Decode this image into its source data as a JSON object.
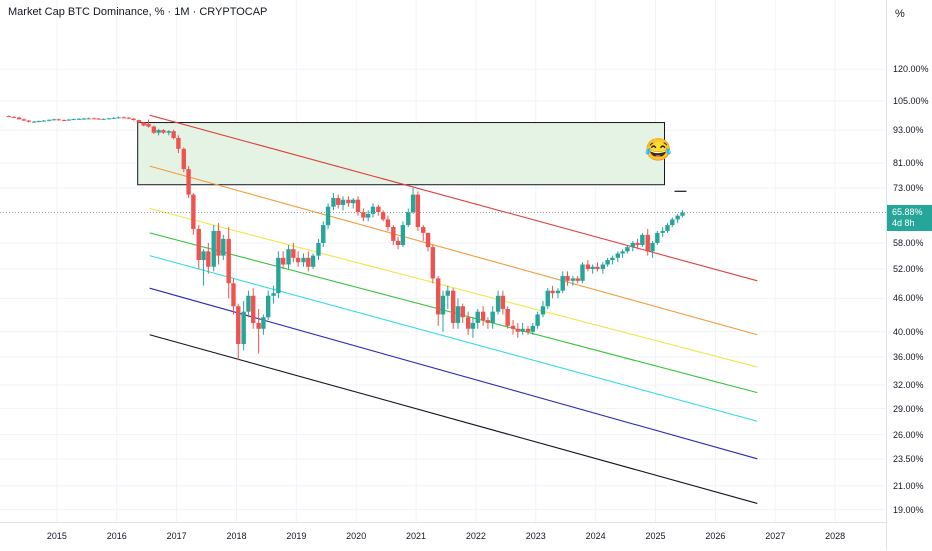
{
  "chart_data": {
    "type": "candlestick",
    "title": "Market Cap BTC Dominance, % · 1M · CRYPTOCAP",
    "y_unit": "%",
    "y_scale": "log",
    "y_ticks": [
      "120.00%",
      "105.00%",
      "93.00%",
      "81.00%",
      "73.00%",
      "65.88%",
      "58.00%",
      "52.00%",
      "46.00%",
      "40.00%",
      "36.00%",
      "32.00%",
      "29.00%",
      "26.00%",
      "23.50%",
      "21.00%",
      "19.00%"
    ],
    "y_tick_values": [
      120,
      105,
      93,
      81,
      73,
      58,
      52,
      46,
      40,
      36,
      32,
      29,
      26,
      23.5,
      21,
      19
    ],
    "x_ticks": [
      "2015",
      "2016",
      "2017",
      "2018",
      "2019",
      "2020",
      "2021",
      "2022",
      "2023",
      "2024",
      "2025",
      "2026",
      "2027",
      "2028"
    ],
    "x_tick_years": [
      2015,
      2016,
      2017,
      2018,
      2019,
      2020,
      2021,
      2022,
      2023,
      2024,
      2025,
      2026,
      2027,
      2028
    ],
    "x_range": [
      2014.05,
      2028.85
    ],
    "y_range": [
      18.5,
      145
    ],
    "last_price": "65.88%",
    "countdown": "4d 8h",
    "grid": true,
    "colors": {
      "up": "#26a69a",
      "down": "#ef5350",
      "zone_fill": "#e4f3e4",
      "zone_border": "#131722"
    },
    "zone": {
      "x_start": 2016.35,
      "x_end": 2025.15,
      "y_low": 74,
      "y_high": 96
    },
    "annotation_icon": "laughing-crying-emoji",
    "channel_lines": [
      {
        "color": "#e04040",
        "x": [
          2016.55,
          2026.7
        ],
        "y": [
          99,
          49.5
        ]
      },
      {
        "color": "#f29b39",
        "x": [
          2016.55,
          2026.7
        ],
        "y": [
          80,
          39.5
        ]
      },
      {
        "color": "#f0e64a",
        "x": [
          2016.55,
          2026.7
        ],
        "y": [
          67,
          34.5
        ]
      },
      {
        "color": "#38c438",
        "x": [
          2016.55,
          2026.7
        ],
        "y": [
          60.5,
          31
        ]
      },
      {
        "color": "#33dbe8",
        "x": [
          2016.55,
          2026.7
        ],
        "y": [
          55,
          27.5
        ]
      },
      {
        "color": "#2a2ab8",
        "x": [
          2016.55,
          2026.7
        ],
        "y": [
          48,
          23.5
        ]
      },
      {
        "color": "#131722",
        "x": [
          2016.55,
          2026.7
        ],
        "y": [
          39.5,
          19.5
        ]
      }
    ],
    "candles": [
      [
        2014.2,
        98.6,
        98.9,
        98.2,
        98.3
      ],
      [
        2014.28,
        98.3,
        98.5,
        97.8,
        98.0
      ],
      [
        2014.37,
        98.0,
        98.4,
        97.2,
        97.3
      ],
      [
        2014.45,
        97.3,
        97.6,
        96.6,
        96.8
      ],
      [
        2014.53,
        96.8,
        97.0,
        96.0,
        96.3
      ],
      [
        2014.62,
        96.3,
        96.6,
        95.9,
        96.4
      ],
      [
        2014.7,
        96.4,
        96.8,
        96.1,
        96.6
      ],
      [
        2014.78,
        96.6,
        97.0,
        96.3,
        96.8
      ],
      [
        2014.87,
        96.8,
        97.3,
        96.5,
        97.1
      ],
      [
        2014.95,
        97.1,
        97.6,
        96.9,
        97.3
      ],
      [
        2015.03,
        97.3,
        97.6,
        96.8,
        97.0
      ],
      [
        2015.12,
        97.0,
        97.3,
        96.6,
        96.9
      ],
      [
        2015.2,
        96.9,
        97.4,
        96.7,
        97.2
      ],
      [
        2015.28,
        97.2,
        97.6,
        97.0,
        97.4
      ],
      [
        2015.37,
        97.4,
        97.8,
        97.1,
        97.5
      ],
      [
        2015.45,
        97.5,
        97.9,
        97.2,
        97.6
      ],
      [
        2015.53,
        97.6,
        98.0,
        97.3,
        97.7
      ],
      [
        2015.62,
        97.7,
        98.0,
        97.4,
        97.6
      ],
      [
        2015.7,
        97.6,
        97.8,
        97.2,
        97.4
      ],
      [
        2015.78,
        97.4,
        97.7,
        97.1,
        97.5
      ],
      [
        2015.87,
        97.5,
        97.9,
        97.3,
        97.7
      ],
      [
        2015.95,
        97.7,
        98.2,
        97.5,
        97.9
      ],
      [
        2016.03,
        97.9,
        98.4,
        97.6,
        98.1
      ],
      [
        2016.12,
        98.1,
        98.5,
        97.8,
        98.0
      ],
      [
        2016.2,
        98.0,
        98.2,
        97.4,
        97.6
      ],
      [
        2016.28,
        97.6,
        97.8,
        96.8,
        97.0
      ],
      [
        2016.37,
        97.0,
        97.2,
        95.8,
        96.0
      ],
      [
        2016.45,
        96.0,
        96.3,
        94.5,
        94.8
      ],
      [
        2016.53,
        95.5,
        97.2,
        94.0,
        94.4
      ],
      [
        2016.62,
        94.4,
        94.8,
        91.5,
        92.0
      ],
      [
        2016.7,
        92.0,
        93.5,
        91.0,
        93.0
      ],
      [
        2016.78,
        93.0,
        93.4,
        91.5,
        92.0
      ],
      [
        2016.87,
        92.0,
        93.0,
        91.0,
        92.6
      ],
      [
        2016.95,
        92.6,
        93.2,
        89.5,
        90.0
      ],
      [
        2017.03,
        90.0,
        91.0,
        84.5,
        86.0
      ],
      [
        2017.12,
        86.0,
        86.5,
        78.0,
        79.0
      ],
      [
        2017.2,
        79.0,
        80.0,
        70.0,
        71.0
      ],
      [
        2017.28,
        71.0,
        71.5,
        60.0,
        61.5
      ],
      [
        2017.37,
        61.5,
        62.5,
        52.0,
        54.0
      ],
      [
        2017.45,
        54.0,
        56.5,
        48.5,
        56.0
      ],
      [
        2017.53,
        56.0,
        58.0,
        51.0,
        52.5
      ],
      [
        2017.62,
        52.5,
        62.5,
        51.5,
        61.0
      ],
      [
        2017.7,
        61.0,
        63.0,
        53.0,
        55.0
      ],
      [
        2017.78,
        55.0,
        60.0,
        54.0,
        59.0
      ],
      [
        2017.87,
        59.0,
        62.0,
        46.0,
        49.0
      ],
      [
        2017.95,
        49.0,
        50.0,
        43.0,
        44.5
      ],
      [
        2018.03,
        44.5,
        45.0,
        35.5,
        38.0
      ],
      [
        2018.12,
        38.0,
        45.5,
        37.0,
        43.5
      ],
      [
        2018.2,
        43.5,
        47.5,
        42.5,
        46.5
      ],
      [
        2018.28,
        46.5,
        48.0,
        40.5,
        41.5
      ],
      [
        2018.37,
        41.5,
        44.0,
        36.5,
        40.5
      ],
      [
        2018.45,
        40.5,
        43.0,
        39.5,
        42.5
      ],
      [
        2018.53,
        42.5,
        47.5,
        42.0,
        46.5
      ],
      [
        2018.62,
        46.5,
        48.5,
        45.0,
        47.0
      ],
      [
        2018.7,
        47.0,
        56.0,
        46.0,
        54.5
      ],
      [
        2018.78,
        54.5,
        56.0,
        52.0,
        53.0
      ],
      [
        2018.87,
        53.0,
        57.5,
        52.0,
        56.5
      ],
      [
        2018.95,
        56.5,
        58.0,
        53.5,
        54.5
      ],
      [
        2019.03,
        54.5,
        56.0,
        52.5,
        53.5
      ],
      [
        2019.12,
        53.5,
        55.5,
        52.5,
        54.5
      ],
      [
        2019.2,
        54.5,
        56.0,
        51.5,
        52.5
      ],
      [
        2019.28,
        52.5,
        55.5,
        52.0,
        55.0
      ],
      [
        2019.37,
        55.0,
        59.0,
        54.0,
        58.0
      ],
      [
        2019.45,
        58.0,
        63.5,
        57.0,
        62.5
      ],
      [
        2019.53,
        62.5,
        68.5,
        61.5,
        67.5
      ],
      [
        2019.62,
        67.5,
        71.5,
        66.5,
        70.0
      ],
      [
        2019.7,
        70.0,
        71.0,
        67.0,
        68.0
      ],
      [
        2019.78,
        68.0,
        70.5,
        66.5,
        69.5
      ],
      [
        2019.87,
        69.5,
        70.5,
        67.5,
        68.5
      ],
      [
        2019.95,
        68.5,
        70.0,
        67.0,
        69.5
      ],
      [
        2020.03,
        69.5,
        70.5,
        65.0,
        66.0
      ],
      [
        2020.12,
        66.0,
        67.0,
        63.5,
        64.5
      ],
      [
        2020.2,
        64.5,
        66.5,
        63.5,
        65.5
      ],
      [
        2020.28,
        65.5,
        68.5,
        64.5,
        67.5
      ],
      [
        2020.37,
        67.5,
        68.0,
        65.0,
        66.0
      ],
      [
        2020.45,
        66.0,
        66.5,
        63.5,
        64.0
      ],
      [
        2020.53,
        64.0,
        65.0,
        61.0,
        62.0
      ],
      [
        2020.62,
        62.0,
        62.5,
        57.5,
        58.5
      ],
      [
        2020.7,
        58.5,
        59.5,
        56.5,
        57.5
      ],
      [
        2020.78,
        57.5,
        63.5,
        57.0,
        62.5
      ],
      [
        2020.87,
        62.5,
        67.0,
        62.0,
        66.0
      ],
      [
        2020.95,
        66.0,
        73.0,
        65.5,
        71.0
      ],
      [
        2021.03,
        71.0,
        72.0,
        61.0,
        62.0
      ],
      [
        2021.12,
        62.0,
        62.5,
        58.5,
        60.5
      ],
      [
        2021.2,
        60.5,
        60.5,
        56.0,
        57.0
      ],
      [
        2021.28,
        57.0,
        57.5,
        49.0,
        50.0
      ],
      [
        2021.37,
        50.0,
        50.5,
        41.0,
        43.0
      ],
      [
        2021.45,
        43.0,
        47.5,
        40.0,
        46.5
      ],
      [
        2021.53,
        46.5,
        48.5,
        44.0,
        47.5
      ],
      [
        2021.62,
        47.5,
        48.0,
        40.5,
        41.5
      ],
      [
        2021.7,
        41.5,
        46.0,
        40.5,
        44.5
      ],
      [
        2021.78,
        44.5,
        45.0,
        41.5,
        42.5
      ],
      [
        2021.87,
        42.5,
        43.5,
        39.5,
        40.5
      ],
      [
        2021.95,
        40.5,
        42.5,
        39.0,
        41.5
      ],
      [
        2022.03,
        41.5,
        44.0,
        40.5,
        43.5
      ],
      [
        2022.12,
        43.5,
        44.5,
        41.0,
        42.0
      ],
      [
        2022.2,
        42.0,
        42.5,
        40.5,
        41.5
      ],
      [
        2022.28,
        41.5,
        44.5,
        40.5,
        43.5
      ],
      [
        2022.37,
        43.5,
        47.5,
        43.0,
        46.5
      ],
      [
        2022.45,
        46.5,
        47.5,
        43.0,
        44.0
      ],
      [
        2022.53,
        44.0,
        44.5,
        40.5,
        41.0
      ],
      [
        2022.62,
        41.0,
        42.0,
        39.5,
        40.5
      ],
      [
        2022.7,
        40.5,
        41.5,
        39.0,
        40.0
      ],
      [
        2022.78,
        40.0,
        41.5,
        39.5,
        40.5
      ],
      [
        2022.87,
        40.5,
        41.0,
        39.5,
        40.0
      ],
      [
        2022.95,
        40.0,
        41.5,
        39.5,
        41.0
      ],
      [
        2023.03,
        41.0,
        43.5,
        40.5,
        43.0
      ],
      [
        2023.12,
        43.0,
        45.5,
        42.5,
        44.5
      ],
      [
        2023.2,
        44.5,
        48.0,
        44.0,
        47.5
      ],
      [
        2023.28,
        47.5,
        48.5,
        46.0,
        47.0
      ],
      [
        2023.37,
        47.0,
        48.0,
        46.0,
        47.5
      ],
      [
        2023.45,
        47.5,
        51.5,
        47.0,
        50.5
      ],
      [
        2023.53,
        50.5,
        51.5,
        48.5,
        49.5
      ],
      [
        2023.62,
        49.5,
        50.5,
        48.5,
        50.0
      ],
      [
        2023.7,
        50.0,
        50.5,
        49.0,
        49.5
      ],
      [
        2023.78,
        49.5,
        53.5,
        49.0,
        53.0
      ],
      [
        2023.87,
        53.0,
        54.0,
        51.5,
        52.0
      ],
      [
        2023.95,
        52.0,
        53.0,
        51.0,
        52.5
      ],
      [
        2024.03,
        52.5,
        53.5,
        51.5,
        52.0
      ],
      [
        2024.12,
        52.0,
        53.5,
        51.0,
        53.0
      ],
      [
        2024.2,
        53.0,
        54.5,
        52.5,
        54.0
      ],
      [
        2024.28,
        54.0,
        55.0,
        53.0,
        54.5
      ],
      [
        2024.37,
        54.5,
        56.0,
        53.5,
        55.5
      ],
      [
        2024.45,
        55.5,
        56.5,
        54.5,
        56.0
      ],
      [
        2024.53,
        56.0,
        57.5,
        55.5,
        57.0
      ],
      [
        2024.62,
        57.0,
        58.5,
        56.0,
        58.0
      ],
      [
        2024.7,
        58.0,
        59.0,
        56.5,
        57.5
      ],
      [
        2024.78,
        57.5,
        60.5,
        57.0,
        60.0
      ],
      [
        2024.87,
        60.0,
        61.5,
        55.0,
        56.0
      ],
      [
        2024.95,
        56.0,
        58.5,
        54.5,
        58.0
      ],
      [
        2025.03,
        58.0,
        61.0,
        57.5,
        60.5
      ],
      [
        2025.12,
        60.5,
        62.0,
        59.5,
        61.0
      ],
      [
        2025.2,
        61.0,
        63.0,
        60.5,
        62.5
      ],
      [
        2025.28,
        62.5,
        64.5,
        62.0,
        64.0
      ],
      [
        2025.37,
        64.0,
        65.5,
        63.0,
        65.0
      ],
      [
        2025.45,
        65.0,
        66.5,
        64.5,
        65.88
      ]
    ]
  }
}
